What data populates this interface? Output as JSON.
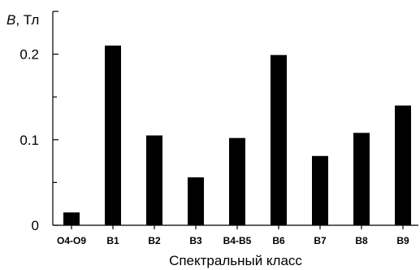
{
  "chart_data": {
    "type": "bar",
    "title": "",
    "xlabel": "Спектральный класс",
    "ylabel_symbol": "B",
    "ylabel_unit": ", Тл",
    "categories": [
      "O4-O9",
      "B1",
      "B2",
      "B3",
      "B4-B5",
      "B6",
      "B7",
      "B8",
      "B9"
    ],
    "values": [
      0.015,
      0.21,
      0.105,
      0.056,
      0.102,
      0.199,
      0.081,
      0.108,
      0.14
    ],
    "ylim": [
      0,
      0.24
    ],
    "yticks": [
      0,
      0.1,
      0.2
    ],
    "ytick_labels": [
      "0",
      "0.1",
      "0.2"
    ],
    "yminor_ticks": [
      0.05,
      0.15
    ],
    "grid": false,
    "bar_color": "#000000"
  }
}
